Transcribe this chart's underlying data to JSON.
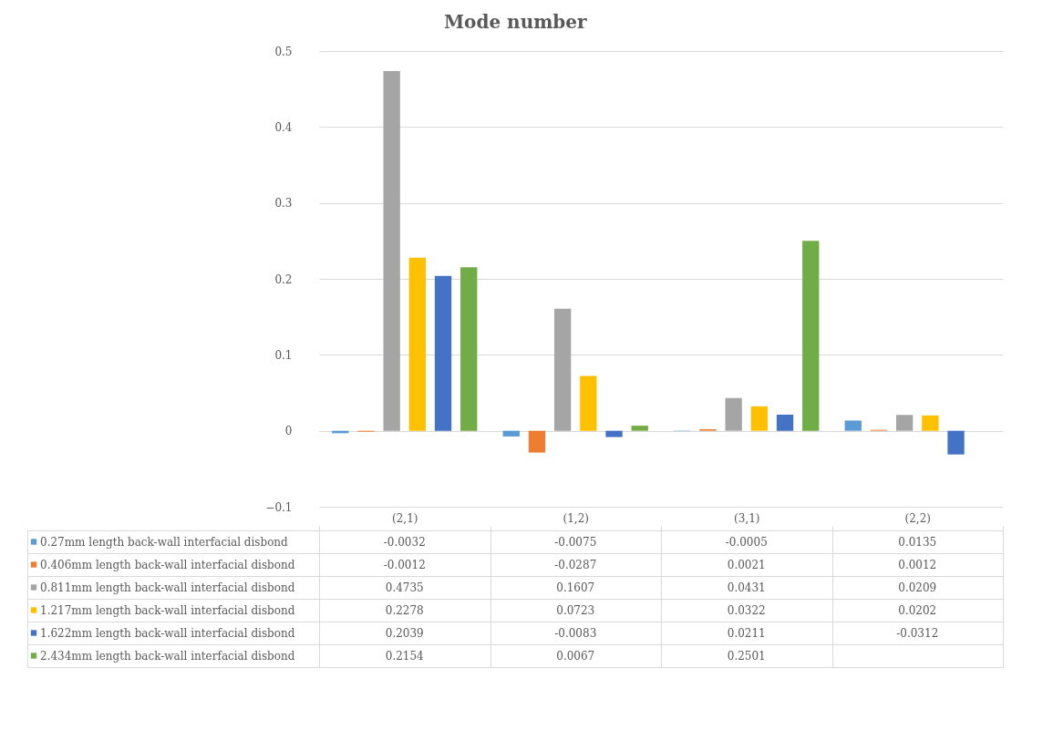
{
  "chart_data": {
    "type": "bar",
    "title": "Mode number",
    "categories": [
      "(2,1)",
      "(1,2)",
      "(3,1)",
      "(2,2)"
    ],
    "series": [
      {
        "name": "0.27mm length back-wall interfacial disbond",
        "color": "#5b9bd5",
        "values": [
          -0.0032,
          -0.0075,
          -0.0005,
          0.0135
        ]
      },
      {
        "name": "0.406mm length back-wall interfacial disbond",
        "color": "#ed7d31",
        "values": [
          -0.0012,
          -0.0287,
          0.0021,
          0.0012
        ]
      },
      {
        "name": "0.811mm length back-wall interfacial disbond",
        "color": "#a5a5a5",
        "values": [
          0.4735,
          0.1607,
          0.0431,
          0.0209
        ]
      },
      {
        "name": "1.217mm length back-wall interfacial disbond",
        "color": "#ffc000",
        "values": [
          0.2278,
          0.0723,
          0.0322,
          0.0202
        ]
      },
      {
        "name": "1.622mm length back-wall interfacial disbond",
        "color": "#4472c4",
        "values": [
          0.2039,
          -0.0083,
          0.0211,
          -0.0312
        ]
      },
      {
        "name": "2.434mm length back-wall interfacial disbond",
        "color": "#70ad47",
        "values": [
          0.2154,
          0.0067,
          0.2501,
          null
        ]
      }
    ],
    "ylim": [
      -0.1,
      0.5
    ],
    "yticks": [
      -0.1,
      0,
      0.1,
      0.2,
      0.3,
      0.4,
      0.5
    ],
    "grid": "y",
    "legend": "bottom",
    "data_labels": true
  }
}
